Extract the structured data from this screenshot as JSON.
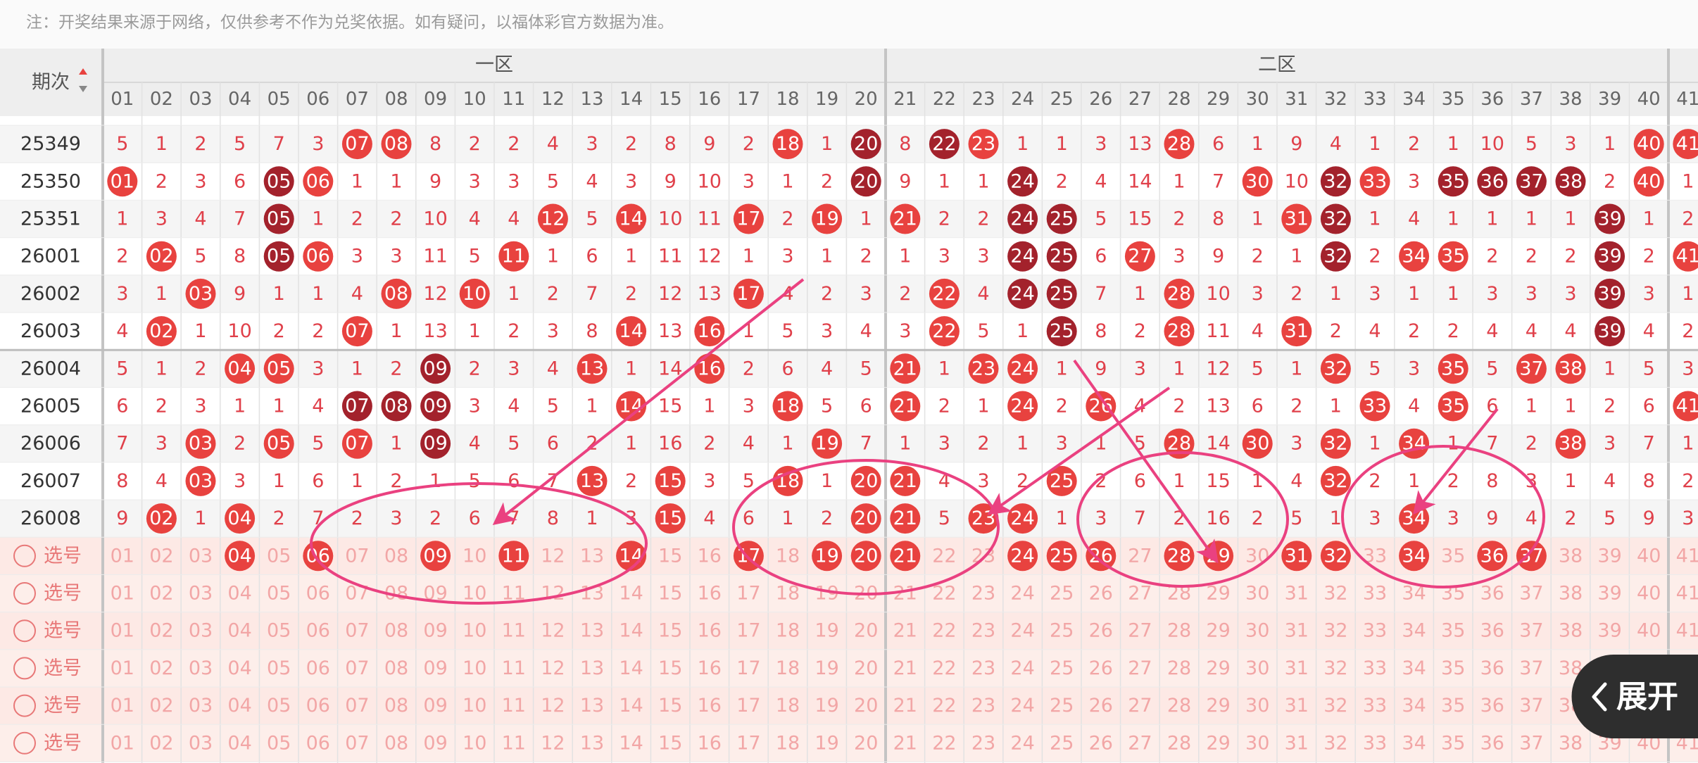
{
  "note": "注：开奖结果来源于网络，仅供参考不作为兑奖依据。如有疑问，以福体彩官方数据为准。",
  "header": {
    "period_label": "期次",
    "zones": [
      "一区",
      "二区"
    ],
    "columns": [
      "01",
      "02",
      "03",
      "04",
      "05",
      "06",
      "07",
      "08",
      "09",
      "10",
      "11",
      "12",
      "13",
      "14",
      "15",
      "16",
      "17",
      "18",
      "19",
      "20",
      "21",
      "22",
      "23",
      "24",
      "25",
      "26",
      "27",
      "28",
      "29",
      "30",
      "31",
      "32",
      "33",
      "34",
      "35",
      "36",
      "37",
      "38",
      "39",
      "40",
      "41"
    ]
  },
  "rows": [
    {
      "period": "25349",
      "values": [
        "5",
        "1",
        "2",
        "5",
        "7",
        "3",
        "07",
        "08",
        "8",
        "2",
        "2",
        "4",
        "3",
        "2",
        "8",
        "9",
        "2",
        "18",
        "1",
        "20",
        "8",
        "22",
        "23",
        "1",
        "1",
        "3",
        "13",
        "28",
        "6",
        "1",
        "9",
        "4",
        "1",
        "2",
        "1",
        "10",
        "5",
        "3",
        "1",
        "40",
        "41"
      ],
      "marks": "......rr.........r.d.dr....r...........rr"
    },
    {
      "period": "25350",
      "values": [
        "01",
        "2",
        "3",
        "6",
        "05",
        "06",
        "1",
        "1",
        "9",
        "3",
        "3",
        "5",
        "4",
        "3",
        "9",
        "10",
        "3",
        "1",
        "2",
        "20",
        "9",
        "1",
        "1",
        "24",
        "2",
        "4",
        "14",
        "1",
        "7",
        "30",
        "10",
        "32",
        "33",
        "3",
        "35",
        "36",
        "37",
        "38",
        "2",
        "40",
        "1"
      ],
      "marks": "r...dr.............d...d.....r.dr.dddd.r."
    },
    {
      "period": "25351",
      "values": [
        "1",
        "3",
        "4",
        "7",
        "05",
        "1",
        "2",
        "2",
        "10",
        "4",
        "4",
        "12",
        "5",
        "14",
        "10",
        "11",
        "17",
        "2",
        "19",
        "1",
        "21",
        "2",
        "2",
        "24",
        "25",
        "5",
        "15",
        "2",
        "8",
        "1",
        "31",
        "32",
        "1",
        "4",
        "1",
        "1",
        "1",
        "1",
        "39",
        "1",
        "2"
      ],
      "marks": "....d......r.r..r.r.r..dd.....rd......d.."
    },
    {
      "period": "26001",
      "values": [
        "2",
        "02",
        "5",
        "8",
        "05",
        "06",
        "3",
        "3",
        "11",
        "5",
        "11",
        "1",
        "6",
        "1",
        "11",
        "12",
        "1",
        "3",
        "1",
        "2",
        "1",
        "3",
        "3",
        "24",
        "25",
        "6",
        "27",
        "3",
        "9",
        "2",
        "1",
        "32",
        "2",
        "34",
        "35",
        "2",
        "2",
        "2",
        "39",
        "2",
        "41"
      ],
      "marks": ".r..dr....r............dd.r....d.rr...d.r"
    },
    {
      "period": "26002",
      "values": [
        "3",
        "1",
        "03",
        "9",
        "1",
        "1",
        "4",
        "08",
        "12",
        "10",
        "1",
        "2",
        "7",
        "2",
        "12",
        "13",
        "17",
        "4",
        "2",
        "3",
        "2",
        "22",
        "4",
        "24",
        "25",
        "7",
        "1",
        "28",
        "10",
        "3",
        "2",
        "1",
        "3",
        "1",
        "1",
        "3",
        "3",
        "3",
        "39",
        "3",
        "1"
      ],
      "marks": "..r....r.r......r....r.dd..r..........d.."
    },
    {
      "period": "26003",
      "values": [
        "4",
        "02",
        "1",
        "10",
        "2",
        "2",
        "07",
        "1",
        "13",
        "1",
        "2",
        "3",
        "8",
        "14",
        "13",
        "16",
        "1",
        "5",
        "3",
        "4",
        "3",
        "22",
        "5",
        "1",
        "25",
        "8",
        "2",
        "28",
        "11",
        "4",
        "31",
        "2",
        "4",
        "2",
        "2",
        "4",
        "4",
        "4",
        "39",
        "4",
        "2"
      ],
      "marks": ".r....r......r.r.....r..d..r..r.......d.."
    },
    {
      "period": "26004",
      "values": [
        "5",
        "1",
        "2",
        "04",
        "05",
        "3",
        "1",
        "2",
        "09",
        "2",
        "3",
        "4",
        "13",
        "1",
        "14",
        "16",
        "2",
        "6",
        "4",
        "5",
        "21",
        "1",
        "23",
        "24",
        "1",
        "9",
        "3",
        "1",
        "12",
        "5",
        "1",
        "32",
        "5",
        "3",
        "35",
        "5",
        "37",
        "38",
        "1",
        "5",
        "3"
      ],
      "marks": "...rr...d...r..r....r.rr.......r..r.rr..."
    },
    {
      "period": "26005",
      "values": [
        "6",
        "2",
        "3",
        "1",
        "1",
        "4",
        "07",
        "08",
        "09",
        "3",
        "4",
        "5",
        "1",
        "14",
        "15",
        "1",
        "3",
        "18",
        "5",
        "6",
        "21",
        "2",
        "1",
        "24",
        "2",
        "26",
        "4",
        "2",
        "13",
        "6",
        "2",
        "1",
        "33",
        "4",
        "35",
        "6",
        "1",
        "1",
        "2",
        "6",
        "41"
      ],
      "marks": "......ddd....r...r..r..r.r......r.r.....r"
    },
    {
      "period": "26006",
      "values": [
        "7",
        "3",
        "03",
        "2",
        "05",
        "5",
        "07",
        "1",
        "09",
        "4",
        "5",
        "6",
        "2",
        "1",
        "16",
        "2",
        "4",
        "1",
        "19",
        "7",
        "1",
        "3",
        "2",
        "1",
        "3",
        "1",
        "5",
        "28",
        "14",
        "30",
        "3",
        "32",
        "1",
        "34",
        "1",
        "7",
        "2",
        "38",
        "3",
        "7",
        "1"
      ],
      "marks": "..r.r.r.d.........r........r.r.r.r...r..."
    },
    {
      "period": "26007",
      "values": [
        "8",
        "4",
        "03",
        "3",
        "1",
        "6",
        "1",
        "2",
        "1",
        "5",
        "6",
        "7",
        "13",
        "2",
        "15",
        "3",
        "5",
        "18",
        "1",
        "20",
        "21",
        "4",
        "3",
        "2",
        "25",
        "2",
        "6",
        "1",
        "15",
        "1",
        "4",
        "32",
        "2",
        "1",
        "2",
        "8",
        "3",
        "1",
        "4",
        "8",
        "2"
      ],
      "marks": "..r.........r.r..r.rr...r......r........."
    },
    {
      "period": "26008",
      "values": [
        "9",
        "02",
        "1",
        "04",
        "2",
        "7",
        "2",
        "3",
        "2",
        "6",
        "7",
        "8",
        "1",
        "3",
        "15",
        "4",
        "6",
        "1",
        "2",
        "20",
        "21",
        "5",
        "23",
        "24",
        "1",
        "3",
        "7",
        "2",
        "16",
        "2",
        "5",
        "1",
        "3",
        "34",
        "3",
        "9",
        "4",
        "2",
        "5",
        "9",
        "3"
      ],
      "marks": ".r.r..........r....rr.rr.........r......."
    }
  ],
  "select_rows": [
    {
      "label": "选号",
      "marks": "...r.r..r.r..r..r.rrr..rrr.rr.rr.r.rr...."
    },
    {
      "label": "选号",
      "marks": "........................................."
    },
    {
      "label": "选号",
      "marks": "........................................."
    },
    {
      "label": "选号",
      "marks": "........................................."
    },
    {
      "label": "选号",
      "marks": "........................................."
    },
    {
      "label": "选号",
      "marks": "........................................."
    }
  ],
  "expand_button": "展开"
}
